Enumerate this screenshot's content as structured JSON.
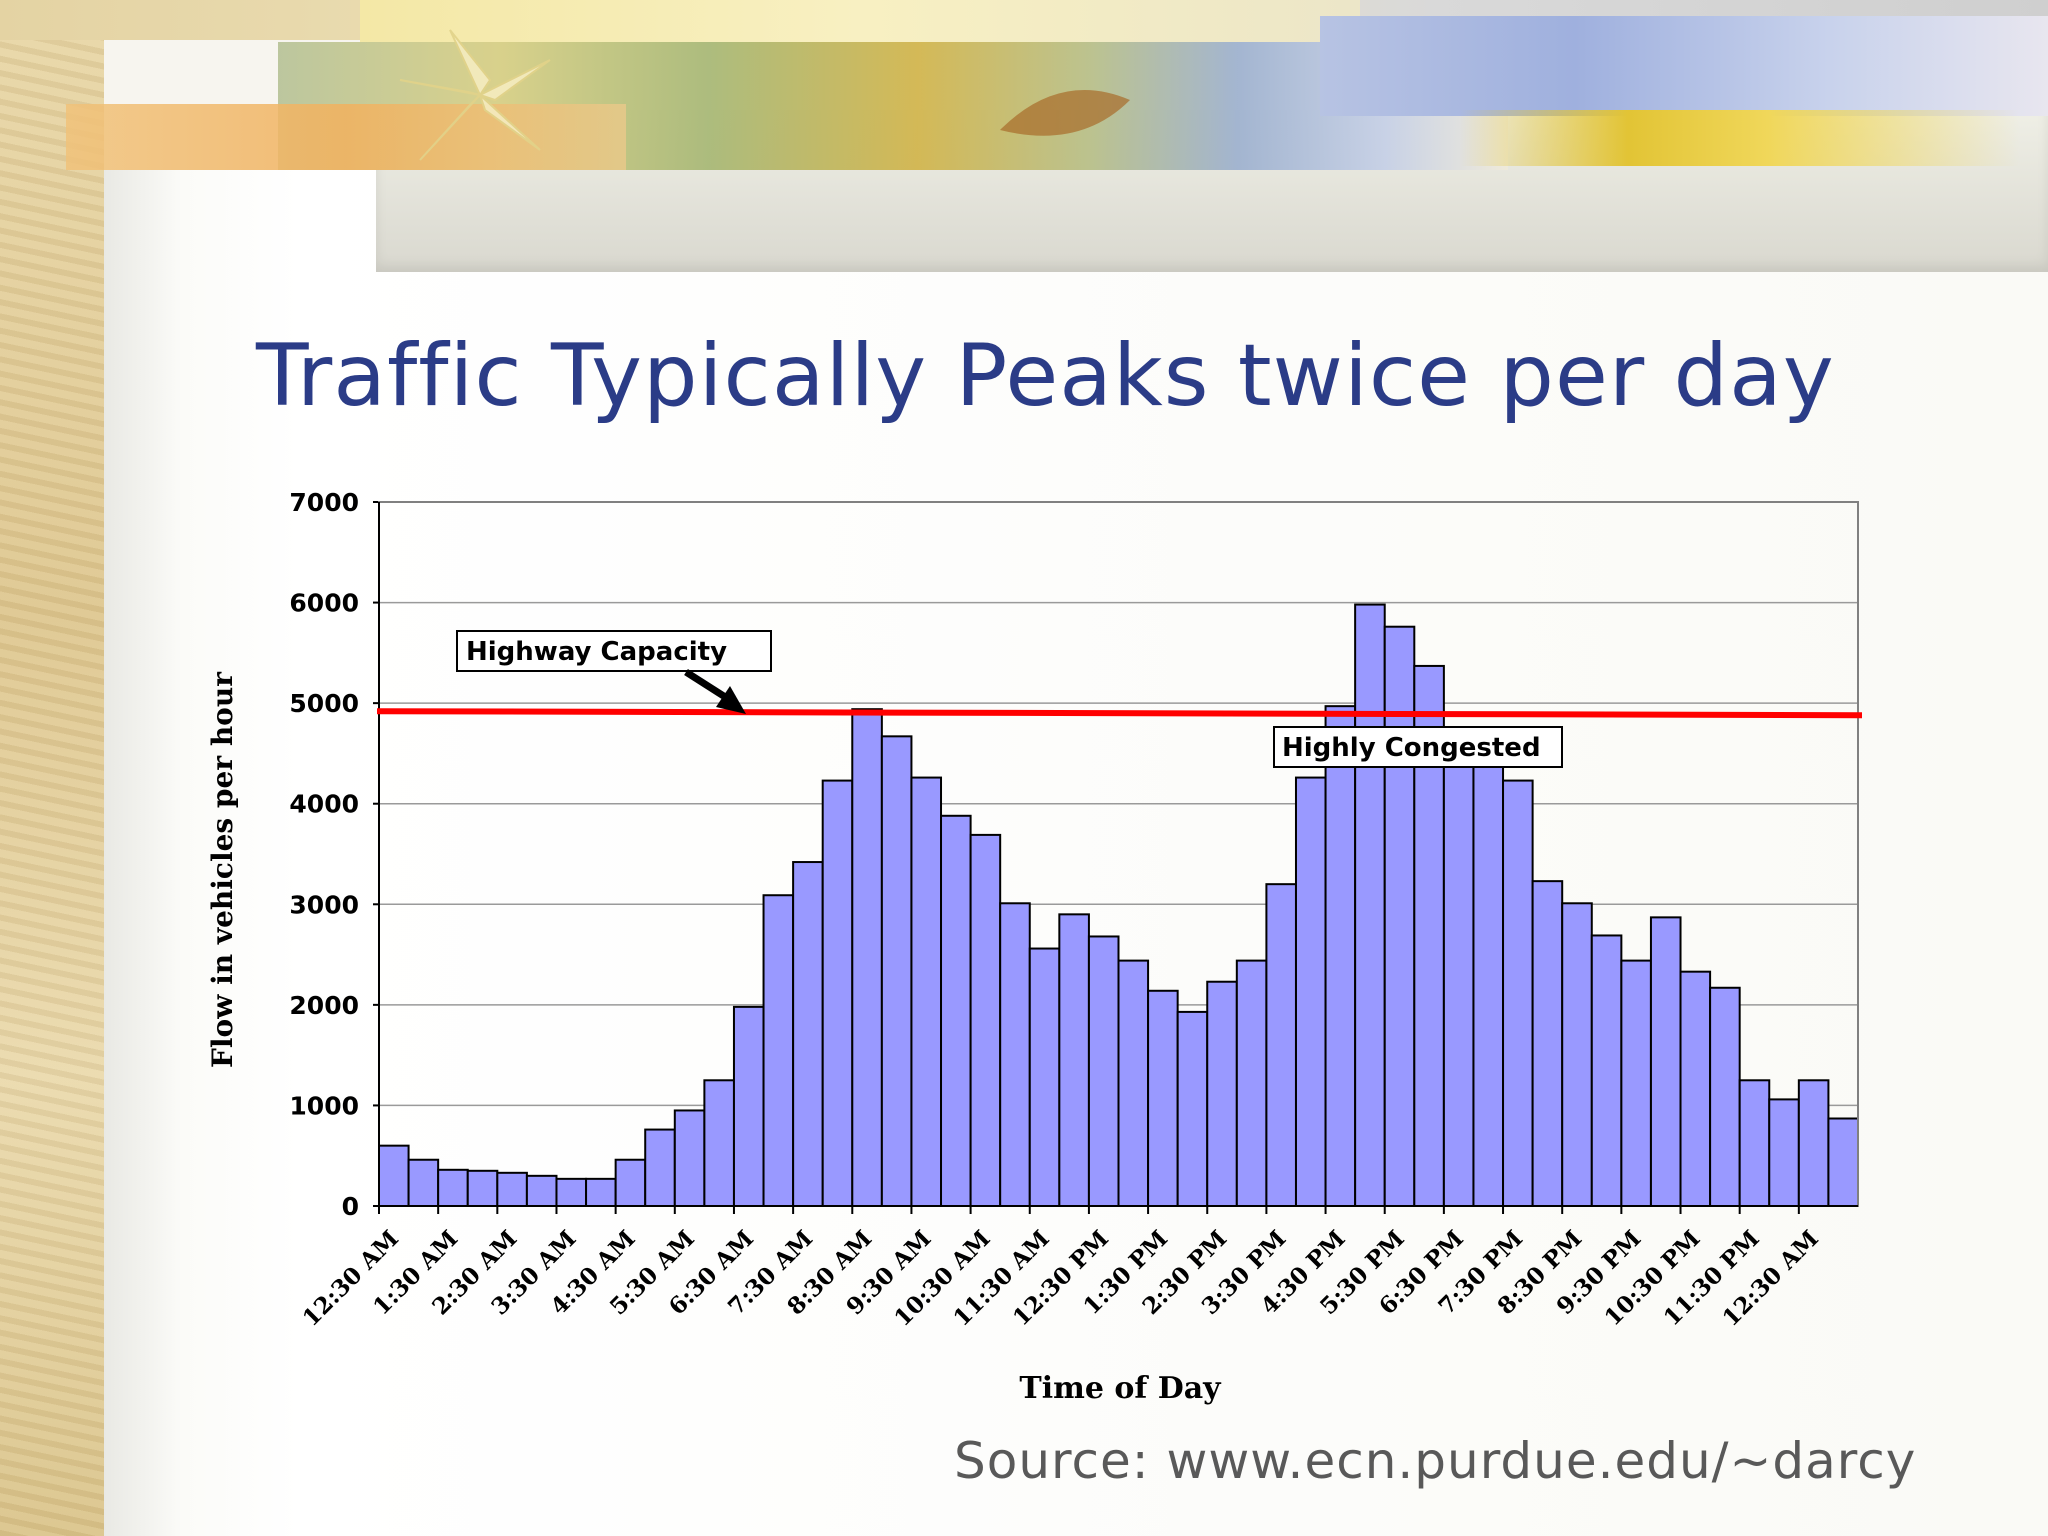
{
  "slide": {
    "title": "Traffic Typically Peaks twice per day",
    "source": "Source: www.ecn.purdue.edu/~darcy"
  },
  "colors": {
    "title": "#2b3c87",
    "bar_fill": "#9999ff",
    "capacity_line": "#ff0000",
    "source_text": "#595959"
  },
  "chart_data": {
    "type": "bar",
    "xlabel": "Time of Day",
    "ylabel": "Flow in vehicles per hour",
    "ylim": [
      0,
      7000
    ],
    "yticks": [
      0,
      1000,
      2000,
      3000,
      4000,
      5000,
      6000,
      7000
    ],
    "grid": true,
    "x_tick_labels": [
      "12:30 AM",
      "1:30 AM",
      "2:30 AM",
      "3:30 AM",
      "4:30 AM",
      "5:30 AM",
      "6:30 AM",
      "7:30 AM",
      "8:30 AM",
      "9:30 AM",
      "10:30 AM",
      "11:30 AM",
      "12:30 PM",
      "1:30 PM",
      "2:30 PM",
      "3:30 PM",
      "4:30 PM",
      "5:30 PM",
      "6:30 PM",
      "7:30 PM",
      "8:30 PM",
      "9:30 PM",
      "10:30 PM",
      "11:30 PM",
      "12:30 AM"
    ],
    "values": [
      600,
      460,
      360,
      350,
      330,
      300,
      270,
      270,
      460,
      760,
      950,
      1250,
      1980,
      3090,
      3420,
      4230,
      4940,
      4670,
      4260,
      3880,
      3690,
      3010,
      2560,
      2900,
      2680,
      2440,
      2140,
      1930,
      2230,
      2440,
      3200,
      4260,
      4970,
      5980,
      5760,
      5370,
      4370,
      4380,
      4230,
      3230,
      3010,
      2690,
      2440,
      2870,
      2330,
      2170,
      1250,
      1060,
      1250,
      870
    ],
    "reference_line": {
      "label": "Highway Capacity",
      "value": 4900
    },
    "annotations": [
      {
        "text": "Highway Capacity"
      },
      {
        "text": "Highly Congested"
      }
    ]
  }
}
